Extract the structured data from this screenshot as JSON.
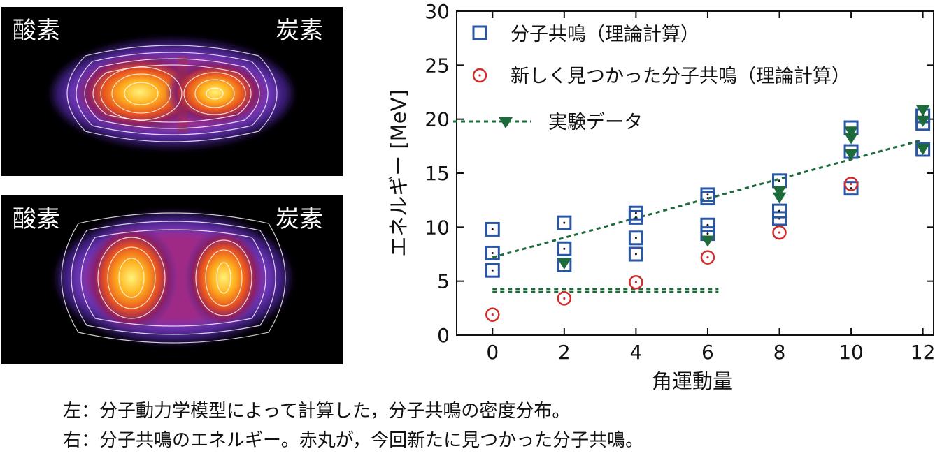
{
  "density_panels": [
    {
      "label_left": "酸素",
      "label_right": "炭素"
    },
    {
      "label_left": "酸素",
      "label_right": "炭素"
    }
  ],
  "chart_data": {
    "type": "scatter",
    "xlabel": "角運動量",
    "ylabel": "エネルギー [MeV]",
    "xlim": [
      -1,
      12.3
    ],
    "ylim": [
      0,
      30
    ],
    "xticks": [
      0,
      2,
      4,
      6,
      8,
      10,
      12
    ],
    "yticks": [
      0,
      5,
      10,
      15,
      20,
      25,
      30
    ],
    "grid": false,
    "legend_position": "top-left",
    "series": [
      {
        "name": "分子共鳴（理論計算）",
        "marker": "square",
        "color": "#2a56a6",
        "points": [
          [
            0,
            6.0
          ],
          [
            0,
            7.6
          ],
          [
            0,
            9.8
          ],
          [
            2,
            6.5
          ],
          [
            2,
            8.0
          ],
          [
            2,
            10.4
          ],
          [
            4,
            7.5
          ],
          [
            4,
            9.0
          ],
          [
            4,
            10.9
          ],
          [
            4,
            11.3
          ],
          [
            6,
            9.4
          ],
          [
            6,
            10.2
          ],
          [
            6,
            12.7
          ],
          [
            6,
            13.0
          ],
          [
            8,
            10.8
          ],
          [
            8,
            11.5
          ],
          [
            8,
            14.3
          ],
          [
            10,
            13.6
          ],
          [
            10,
            17.0
          ],
          [
            10,
            19.2
          ],
          [
            12,
            17.2
          ],
          [
            12,
            19.6
          ],
          [
            12,
            20.3
          ]
        ]
      },
      {
        "name": "新しく見つかった分子共鳴（理論計算）",
        "marker": "circle",
        "color": "#d42a2a",
        "points": [
          [
            0,
            1.9
          ],
          [
            2,
            3.4
          ],
          [
            4,
            4.9
          ],
          [
            6,
            7.2
          ],
          [
            8,
            9.5
          ],
          [
            10,
            14.0
          ]
        ]
      },
      {
        "name": "実験データ",
        "marker": "triangle",
        "color": "#1d6b3a",
        "line": "dotted",
        "points": [
          [
            2,
            6.6
          ],
          [
            6,
            8.7
          ],
          [
            8,
            12.7
          ],
          [
            8,
            13.3
          ],
          [
            10,
            16.7
          ],
          [
            10,
            18.2
          ],
          [
            10,
            18.8
          ],
          [
            12,
            17.2
          ],
          [
            12,
            19.8
          ],
          [
            12,
            20.8
          ]
        ],
        "trend_line": [
          [
            0,
            7.2
          ],
          [
            12,
            18.1
          ]
        ],
        "thresholds": [
          [
            0,
            6.3,
            4.3
          ],
          [
            0,
            6.3,
            4.0
          ]
        ]
      }
    ]
  },
  "caption": {
    "line1": "左：分子動力学模型によって計算した，分子共鳴の密度分布。",
    "line2": "右：分子共鳴のエネルギー。赤丸が，今回新たに見つかった分子共鳴。"
  }
}
